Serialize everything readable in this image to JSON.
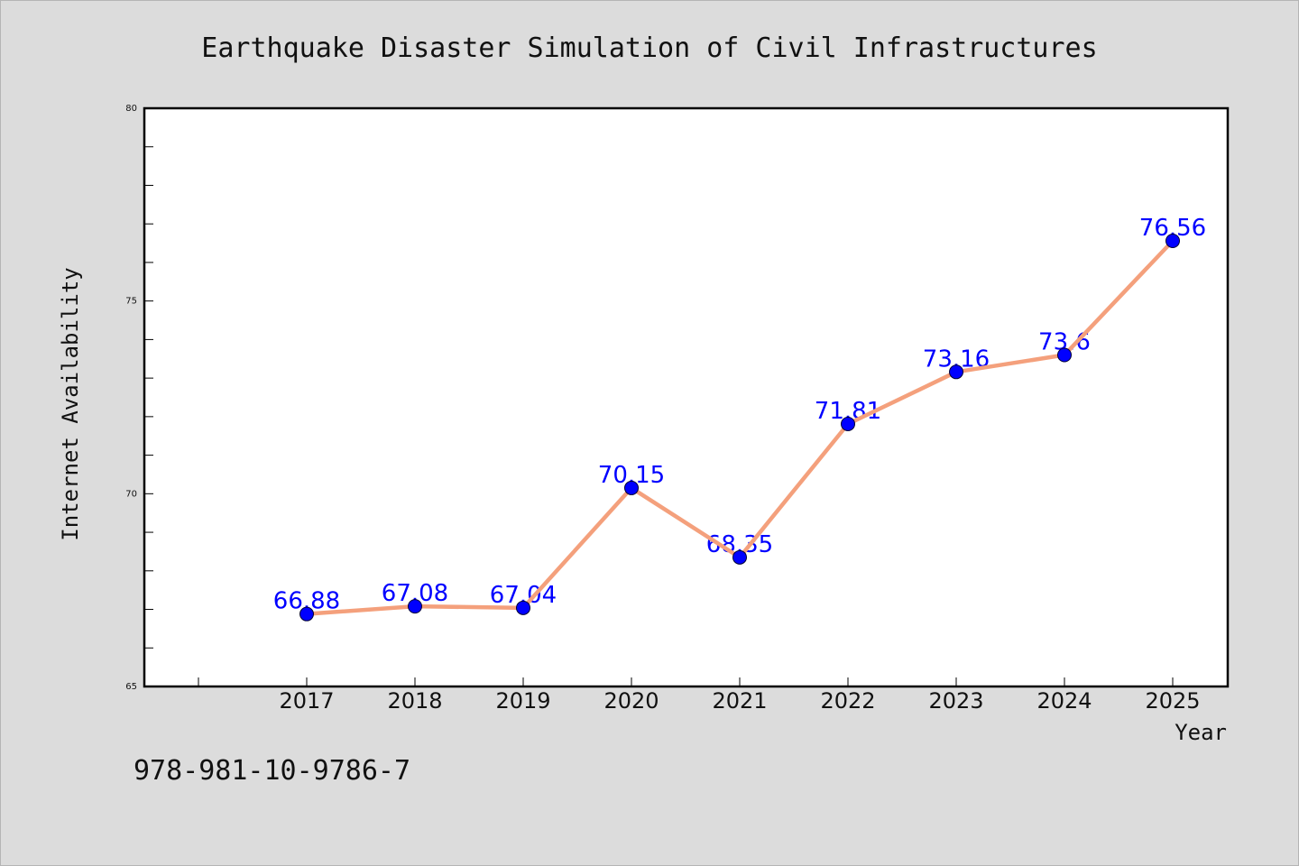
{
  "chart_data": {
    "type": "line",
    "title": "Earthquake Disaster Simulation of Civil Infrastructures",
    "xlabel": "Year",
    "ylabel": "Internet Availability",
    "categories": [
      "2017",
      "2018",
      "2019",
      "2020",
      "2021",
      "2022",
      "2023",
      "2024",
      "2025"
    ],
    "values": [
      66.88,
      67.08,
      67.04,
      70.15,
      68.35,
      71.81,
      73.16,
      73.6,
      76.56
    ],
    "data_labels": [
      "66.88",
      "67.08",
      "67.04",
      "70.15",
      "68.35",
      "71.81",
      "73.16",
      "73.6",
      "76.56"
    ],
    "y_ticks": [
      "65",
      "70",
      "75",
      "80"
    ],
    "ylim": [
      65,
      80
    ],
    "grid": false,
    "legend": "none",
    "colors": {
      "line": "#f4a07c",
      "marker": "#0000ff",
      "data_label": "#0000ff",
      "background": "#dcdcdc",
      "plot_background": "#ffffff"
    }
  },
  "footer_text": "978-981-10-9786-7"
}
